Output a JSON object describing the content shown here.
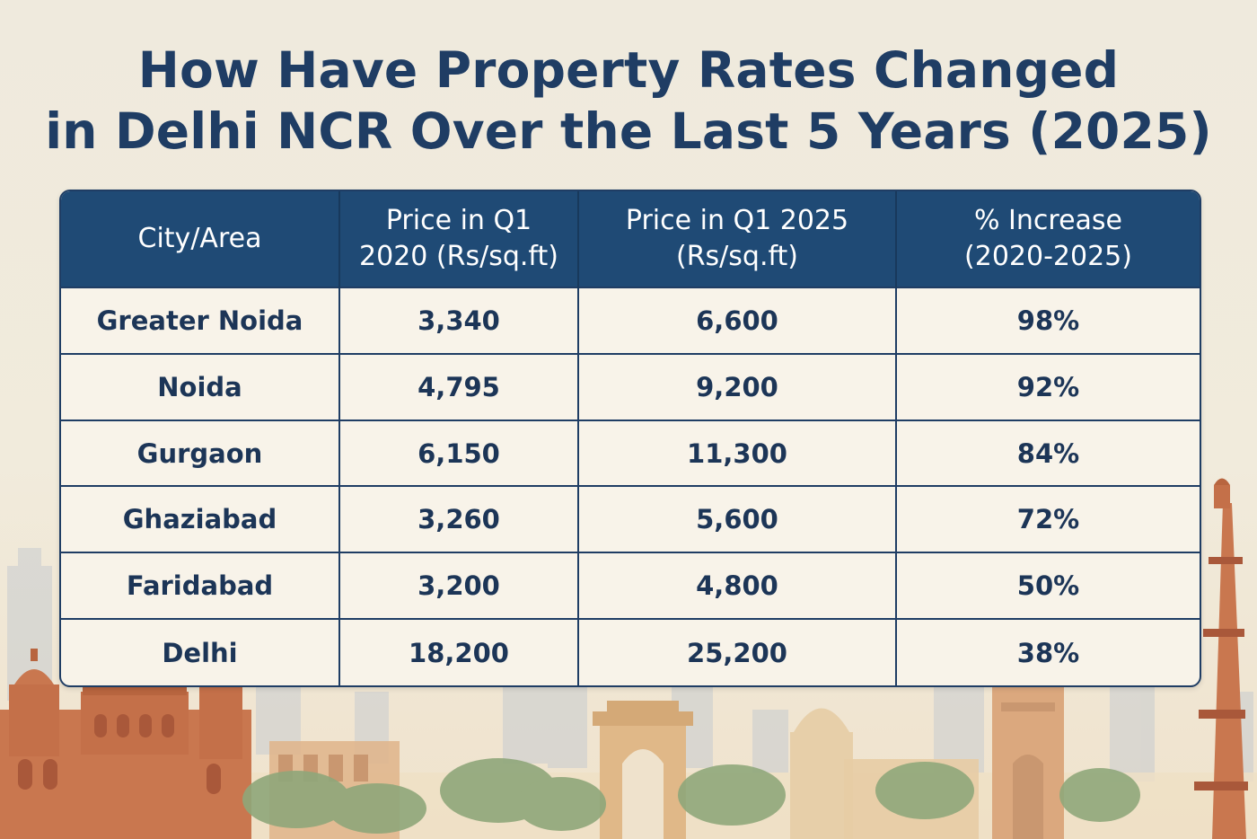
{
  "title": {
    "line1": "How Have Property Rates Changed",
    "line2": "in Delhi NCR Over the Last 5 Years (2025)"
  },
  "table": {
    "headers": [
      {
        "line1": "City/Area",
        "line2": ""
      },
      {
        "line1": "Price in Q1",
        "line2": "2020 (Rs/sq.ft)"
      },
      {
        "line1": "Price in Q1 2025",
        "line2": "(Rs/sq.ft)"
      },
      {
        "line1": "% Increase",
        "line2": "(2020-2025)"
      }
    ],
    "rows": [
      {
        "city": "Greater Noida",
        "price_2020": "3,340",
        "price_2025": "6,600",
        "increase": "98%"
      },
      {
        "city": "Noida",
        "price_2020": "4,795",
        "price_2025": "9,200",
        "increase": "92%"
      },
      {
        "city": "Gurgaon",
        "price_2020": "6,150",
        "price_2025": "11,300",
        "increase": "84%"
      },
      {
        "city": "Ghaziabad",
        "price_2020": "3,260",
        "price_2025": "5,600",
        "increase": "72%"
      },
      {
        "city": "Faridabad",
        "price_2020": "3,200",
        "price_2025": "4,800",
        "increase": "50%"
      },
      {
        "city": "Delhi",
        "price_2020": "18,200",
        "price_2025": "25,200",
        "increase": "38%"
      }
    ]
  },
  "colors": {
    "title": "#1f3d64",
    "header_bg": "#1f4a75",
    "cell_bg": "#f8f3e9",
    "monument": "#c9774f"
  }
}
